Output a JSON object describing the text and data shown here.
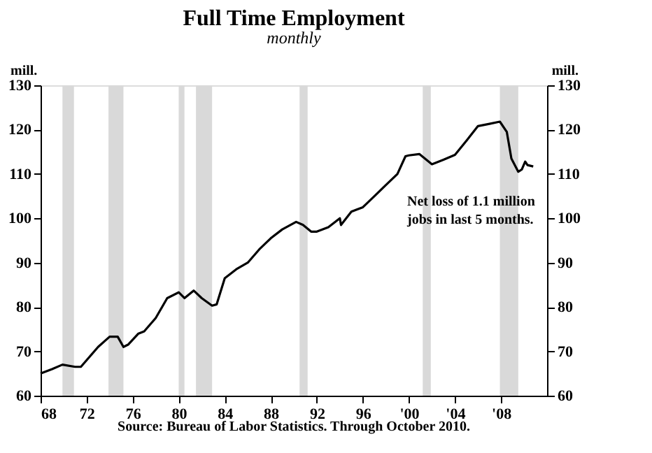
{
  "chart_data": {
    "type": "line",
    "title": "Full Time Employment",
    "subtitle": "monthly",
    "ylabel": "mill.",
    "y2label": "mill.",
    "x": [
      1968.0,
      1969.0,
      1969.9,
      1971.0,
      1971.5,
      1972.0,
      1973.0,
      1974.0,
      1974.7,
      1975.2,
      1975.6,
      1976.5,
      1977.0,
      1978.0,
      1979.0,
      1980.0,
      1980.5,
      1981.3,
      1982.0,
      1982.9,
      1983.3,
      1984.0,
      1985.0,
      1986.0,
      1987.0,
      1988.0,
      1989.0,
      1990.2,
      1990.8,
      1991.5,
      1992.0,
      1993.0,
      1994.0,
      1994.1,
      1995.0,
      1996.0,
      1997.0,
      1998.0,
      1999.0,
      1999.7,
      2000.0,
      2000.9,
      2002.0,
      2003.0,
      2004.0,
      2005.0,
      2006.0,
      2007.0,
      2007.9,
      2008.5,
      2008.9,
      2009.5,
      2009.8,
      2010.1,
      2010.3,
      2010.8
    ],
    "series": [
      {
        "color": "#000000",
        "values": [
          65,
          66,
          67,
          66.5,
          66.5,
          68,
          71,
          73.3,
          73.3,
          71,
          71.5,
          74,
          74.5,
          77.5,
          82,
          83.3,
          82,
          83.7,
          82,
          80.3,
          80.6,
          86.5,
          88.5,
          90,
          93,
          95.5,
          97.5,
          99.2,
          98.5,
          97,
          97,
          98,
          100,
          98.5,
          101.5,
          102.5,
          105,
          107.5,
          110,
          114,
          114.2,
          114.5,
          112.2,
          113.2,
          114.3,
          117.5,
          120.8,
          121.3,
          121.8,
          119.5,
          113.5,
          110.5,
          111,
          112.8,
          112,
          111.7
        ]
      }
    ],
    "xlim": [
      1968,
      2012
    ],
    "xticks": [
      {
        "value": 1968,
        "label": "68"
      },
      {
        "value": 1972,
        "label": "72"
      },
      {
        "value": 1976,
        "label": "76"
      },
      {
        "value": 1980,
        "label": "80"
      },
      {
        "value": 1984,
        "label": "84"
      },
      {
        "value": 1988,
        "label": "88"
      },
      {
        "value": 1992,
        "label": "92"
      },
      {
        "value": 1996,
        "label": "96"
      },
      {
        "value": 2000,
        "label": "'00"
      },
      {
        "value": 2004,
        "label": "'04"
      },
      {
        "value": 2008,
        "label": "'08"
      }
    ],
    "ylim": [
      60,
      130
    ],
    "yticks": [
      60,
      70,
      80,
      90,
      100,
      110,
      120,
      130
    ],
    "y2lim": [
      60,
      130
    ],
    "y2ticks": [
      60,
      70,
      80,
      90,
      100,
      110,
      120,
      130
    ],
    "bands": [
      {
        "axis": "x",
        "from": 1969.9,
        "to": 1970.9,
        "color": "#d9d9d9"
      },
      {
        "axis": "x",
        "from": 1973.9,
        "to": 1975.2,
        "color": "#d9d9d9"
      },
      {
        "axis": "x",
        "from": 1980.0,
        "to": 1980.5,
        "color": "#d9d9d9"
      },
      {
        "axis": "x",
        "from": 1981.5,
        "to": 1982.9,
        "color": "#d9d9d9"
      },
      {
        "axis": "x",
        "from": 1990.5,
        "to": 1991.2,
        "color": "#d9d9d9"
      },
      {
        "axis": "x",
        "from": 2001.2,
        "to": 2001.9,
        "color": "#d9d9d9"
      },
      {
        "axis": "x",
        "from": 2007.9,
        "to": 2009.5,
        "color": "#d9d9d9"
      }
    ],
    "annotations": [
      "Net loss of 1.1 million\njobs in last 5 months.",
      "Source: Bureau of Labor Statistics. Through October 2010."
    ],
    "grid": false
  }
}
